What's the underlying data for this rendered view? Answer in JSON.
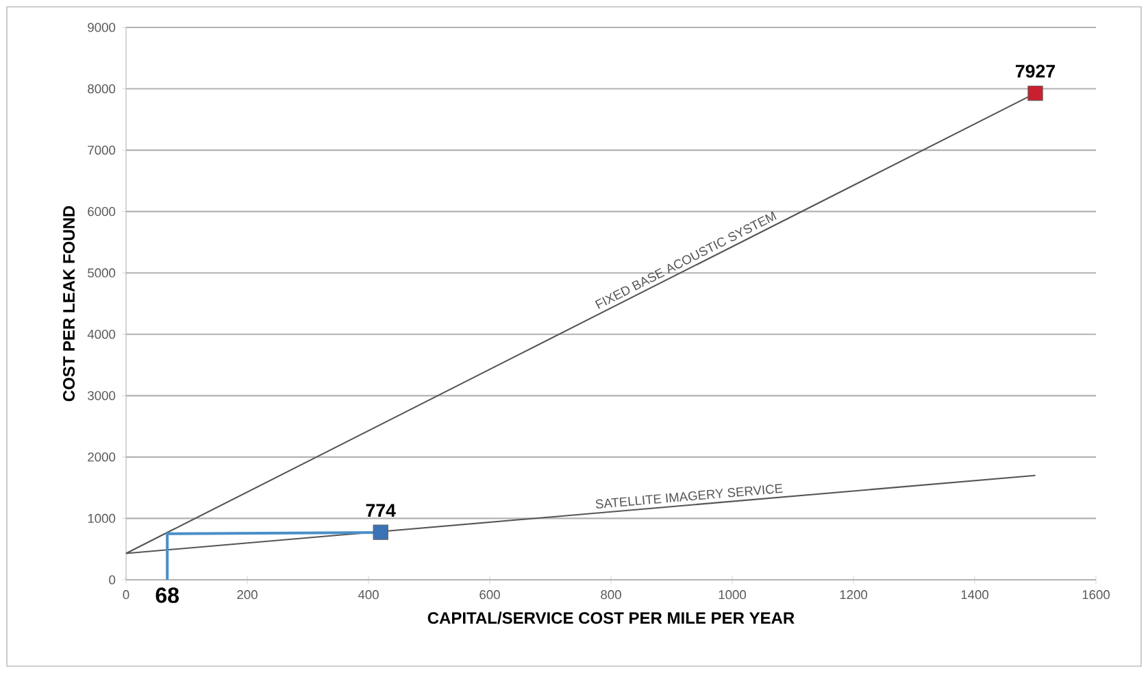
{
  "chart_data": {
    "type": "line",
    "xlabel": "CAPITAL/SERVICE COST PER MILE PER YEAR",
    "ylabel": "COST PER LEAK FOUND",
    "xlim": [
      0,
      1600
    ],
    "xticks": [
      0,
      200,
      400,
      600,
      800,
      1000,
      1200,
      1400,
      1600
    ],
    "ylim": [
      0,
      9000
    ],
    "yticks": [
      0,
      1000,
      2000,
      3000,
      4000,
      5000,
      6000,
      7000,
      8000,
      9000
    ],
    "grid": "y",
    "series": [
      {
        "name": "FIXED BASE ACOUSTIC SYSTEM",
        "color": "#555555",
        "x": [
          0,
          1500
        ],
        "values": [
          430,
          7927
        ]
      },
      {
        "name": "SATELLITE IMAGERY SERVICE",
        "color": "#555555",
        "x": [
          0,
          1500
        ],
        "values": [
          430,
          1700
        ]
      },
      {
        "color": "#4a8fc8",
        "x": [
          68,
          68,
          420
        ],
        "values": [
          0,
          750,
          770
        ]
      },
      {
        "type": "scatter",
        "marker": "square",
        "color": "#c8202e",
        "x": [
          1500
        ],
        "values": [
          7927
        ],
        "value_labels": [
          "7927"
        ]
      },
      {
        "type": "scatter",
        "marker": "square",
        "color": "#3a72b4",
        "x": [
          420
        ],
        "values": [
          774
        ],
        "value_labels": [
          "774"
        ]
      }
    ],
    "annotations": [
      {
        "text": "68",
        "x": 68,
        "y": 0
      }
    ]
  }
}
